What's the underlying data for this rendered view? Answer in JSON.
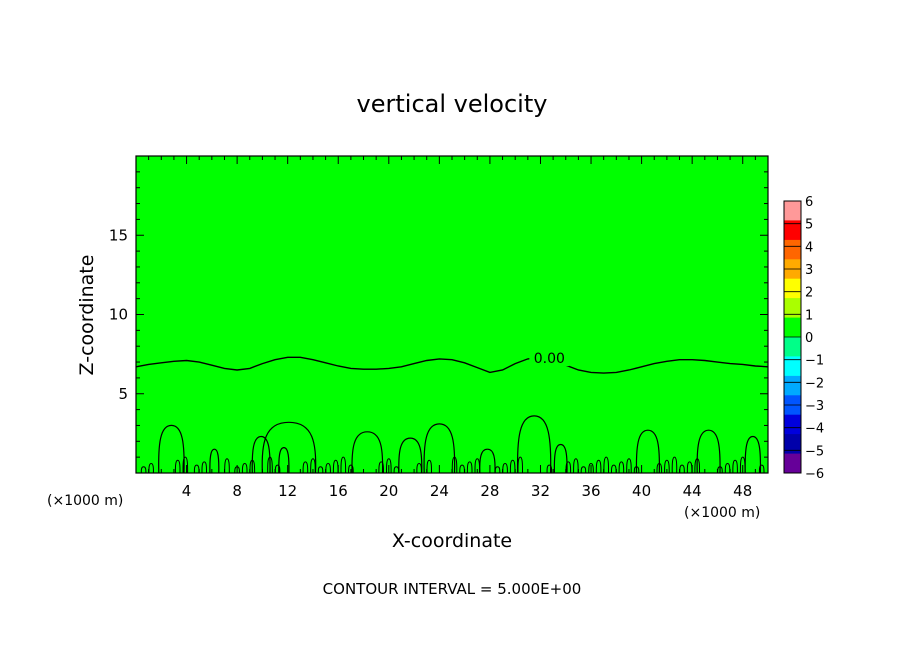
{
  "chart_data": {
    "type": "contour",
    "title": "vertical velocity",
    "xlabel": "X-coordinate",
    "ylabel": "Z-coordinate",
    "x_unit_left": "(×1000 m)",
    "x_unit_right": "(×1000 m)",
    "xlim": [
      0,
      50
    ],
    "ylim": [
      0,
      20
    ],
    "x_ticks": [
      "4",
      "8",
      "12",
      "16",
      "20",
      "24",
      "28",
      "32",
      "36",
      "40",
      "44",
      "48"
    ],
    "y_ticks": [
      "5",
      "10",
      "15"
    ],
    "footer": "CONTOUR INTERVAL = 5.000E+00",
    "contour_label": "0.00",
    "colorbar": {
      "levels": [
        "6",
        "5",
        "4",
        "3",
        "2",
        "1",
        "0",
        "−1",
        "−2",
        "−3",
        "−4",
        "−5",
        "−6"
      ],
      "colors": [
        "#ff9999",
        "#ff0000",
        "#ff6600",
        "#ffaa00",
        "#ffff00",
        "#aaff00",
        "#00ff00",
        "#00ff88",
        "#00ffff",
        "#00aaff",
        "#0055ff",
        "#0000dd",
        "#0000aa",
        "#660099"
      ]
    },
    "fill_color": "#00ff00",
    "zero_contour": {
      "x": [
        0,
        1,
        2,
        3,
        4,
        5,
        6,
        7,
        8,
        9,
        10,
        11,
        12,
        13,
        14,
        15,
        16,
        17,
        18,
        19,
        20,
        21,
        22,
        23,
        24,
        25,
        26,
        27,
        28,
        29,
        30,
        31,
        32,
        33,
        34,
        35,
        36,
        37,
        38,
        39,
        40,
        41,
        42,
        43,
        44,
        45,
        46,
        47,
        48,
        49,
        50
      ],
      "z": [
        6.7,
        6.85,
        6.95,
        7.05,
        7.1,
        7.0,
        6.8,
        6.6,
        6.5,
        6.6,
        6.9,
        7.15,
        7.3,
        7.3,
        7.15,
        6.95,
        6.75,
        6.6,
        6.55,
        6.55,
        6.6,
        6.7,
        6.9,
        7.1,
        7.2,
        7.15,
        6.95,
        6.65,
        6.35,
        6.5,
        6.9,
        7.2,
        7.3,
        7.1,
        6.8,
        6.5,
        6.35,
        6.3,
        6.35,
        6.5,
        6.7,
        6.9,
        7.05,
        7.15,
        7.15,
        7.1,
        7.0,
        6.9,
        6.85,
        6.75,
        6.7
      ]
    },
    "plumes": [
      {
        "x": 2.8,
        "w": 1.0,
        "h": 3.0
      },
      {
        "x": 6.2,
        "w": 0.35,
        "h": 1.5
      },
      {
        "x": 9.9,
        "w": 0.7,
        "h": 2.3
      },
      {
        "x": 12.1,
        "w": 2.1,
        "h": 3.2
      },
      {
        "x": 11.7,
        "w": 0.4,
        "h": 1.6
      },
      {
        "x": 18.3,
        "w": 1.2,
        "h": 2.6
      },
      {
        "x": 21.7,
        "w": 0.9,
        "h": 2.2
      },
      {
        "x": 24.0,
        "w": 1.2,
        "h": 3.1
      },
      {
        "x": 27.8,
        "w": 0.6,
        "h": 1.5
      },
      {
        "x": 31.5,
        "w": 1.3,
        "h": 3.6
      },
      {
        "x": 33.6,
        "w": 0.5,
        "h": 1.8
      },
      {
        "x": 40.5,
        "w": 0.9,
        "h": 2.7
      },
      {
        "x": 45.3,
        "w": 0.9,
        "h": 2.7
      },
      {
        "x": 48.8,
        "w": 0.6,
        "h": 2.3
      }
    ],
    "small_plumes_x": [
      0.6,
      1.2,
      3.3,
      3.9,
      4.8,
      5.4,
      7.2,
      8.0,
      8.6,
      9.2,
      10.6,
      11.2,
      13.4,
      14.0,
      14.6,
      15.2,
      15.8,
      16.4,
      17.0,
      19.4,
      20.0,
      20.6,
      22.4,
      23.2,
      25.2,
      25.8,
      26.4,
      27.0,
      28.6,
      29.2,
      29.8,
      30.4,
      32.7,
      34.2,
      34.8,
      35.4,
      36.0,
      36.6,
      37.2,
      37.8,
      38.4,
      39.0,
      39.6,
      41.4,
      42.0,
      42.6,
      43.2,
      43.8,
      44.4,
      46.2,
      46.8,
      47.4,
      48.0,
      49.5
    ],
    "contour_label_at": {
      "x": 32.7,
      "z": 7.25
    }
  }
}
